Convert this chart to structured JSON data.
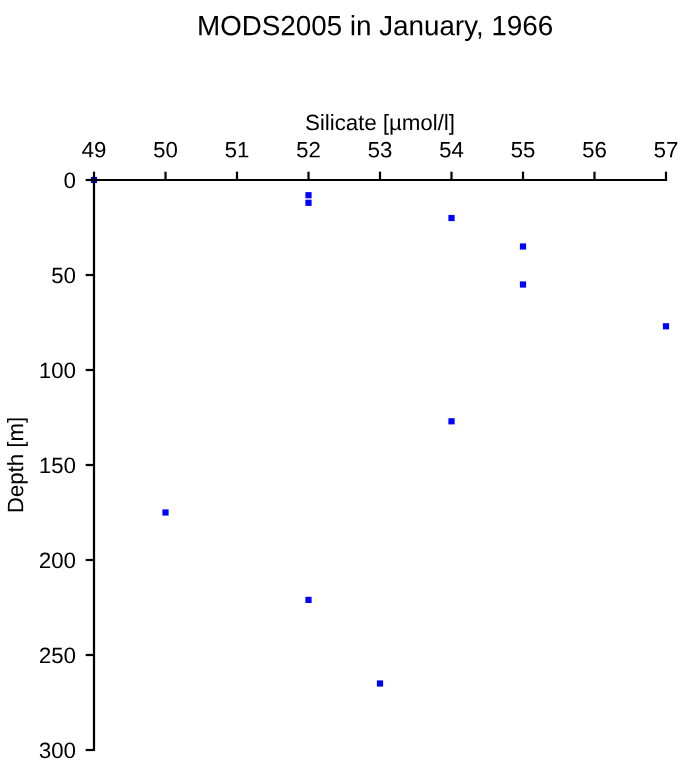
{
  "chart_data": {
    "type": "scatter",
    "title": "MODS2005 in January, 1966",
    "xlabel": "Silicate [µmol/l]",
    "ylabel": "Depth [m]",
    "series": [
      {
        "color": "#0000ff",
        "x": [
          49,
          52,
          52,
          54,
          55,
          55,
          57,
          54,
          50,
          52,
          53
        ],
        "values": [
          0,
          8,
          12,
          20,
          35,
          55,
          77,
          127,
          175,
          221,
          265
        ]
      }
    ],
    "xlim": [
      49,
      57
    ],
    "xticks": [
      49,
      50,
      51,
      52,
      53,
      54,
      55,
      56,
      57
    ],
    "ylim": [
      300,
      0
    ],
    "yticks": [
      0,
      50,
      100,
      150,
      200,
      250,
      300
    ],
    "marker": "square",
    "grid": false,
    "legend": false
  }
}
